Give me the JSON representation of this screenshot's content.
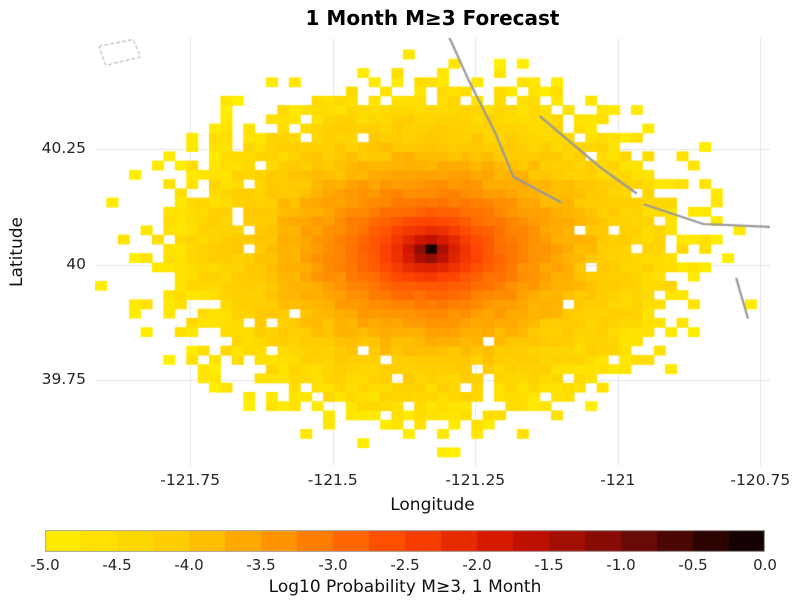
{
  "chart_data": {
    "type": "heatmap",
    "title": "1 Month M≥3 Forecast",
    "xlabel": "Longitude",
    "ylabel": "Latitude",
    "xlim": [
      -121.917,
      -120.733
    ],
    "ylim": [
      39.565,
      40.49
    ],
    "xticks": [
      -121.75,
      -121.5,
      -121.25,
      -121.0,
      -120.75
    ],
    "xtick_labels": [
      "-121.75",
      "-121.5",
      "-121.25",
      "-121",
      "-120.75"
    ],
    "yticks": [
      40.25,
      40.0,
      39.75
    ],
    "ytick_labels": [
      "40.25",
      "40",
      "39.75"
    ],
    "grid": true,
    "grid_color": "#e6e6e6",
    "value_range": [
      -5.0,
      0.0
    ],
    "cell_size_deg": 0.02,
    "field_model": {
      "center_lon": -121.33,
      "center_lat": 40.03,
      "peak_log10_prob": -0.15,
      "edge_log10_prob": -5.0,
      "semi_axis_lon_deg": 0.57,
      "semi_axis_lat_deg": 0.44,
      "core_radius": 0.02,
      "decay_exponent": 0.35,
      "noise_amplitude": 0.22,
      "solid_radius": 0.7,
      "max_radius": 1.06,
      "rng_seed": 1234
    },
    "colormap_stops": [
      {
        "value": -5.0,
        "color": "#ffef00"
      },
      {
        "value": -4.0,
        "color": "#ffc800"
      },
      {
        "value": -3.25,
        "color": "#ff8800"
      },
      {
        "value": -2.5,
        "color": "#ff4400"
      },
      {
        "value": -1.75,
        "color": "#cc1100"
      },
      {
        "value": -1.0,
        "color": "#7a0b06"
      },
      {
        "value": -0.4,
        "color": "#2d0402"
      },
      {
        "value": 0.0,
        "color": "#0a0000"
      }
    ],
    "colorbar": {
      "label": "Log10 Probability M≥3, 1 Month",
      "range": [
        -5.0,
        0.0
      ],
      "ticks": [
        -5.0,
        -4.5,
        -4.0,
        -3.5,
        -3.0,
        -2.5,
        -2.0,
        -1.5,
        -1.0,
        -0.5,
        0.0
      ],
      "tick_labels": [
        "-5.0",
        "-4.5",
        "-4.0",
        "-3.5",
        "-3.0",
        "-2.5",
        "-2.0",
        "-1.5",
        "-1.0",
        "-0.5",
        "0.0"
      ],
      "segments": 20
    },
    "fault_lines": {
      "color": "#999999",
      "width": 2.2,
      "paths": [
        [
          [
            -121.295,
            40.49
          ],
          [
            -121.262,
            40.4
          ],
          [
            -121.215,
            40.285
          ],
          [
            -121.183,
            40.19
          ],
          [
            -121.1,
            40.135
          ]
        ],
        [
          [
            -121.136,
            40.32
          ],
          [
            -121.03,
            40.21
          ],
          [
            -120.968,
            40.155
          ]
        ],
        [
          [
            -120.953,
            40.13
          ],
          [
            -120.85,
            40.088
          ],
          [
            -120.733,
            40.082
          ]
        ],
        [
          [
            -120.792,
            39.97
          ],
          [
            -120.772,
            39.885
          ]
        ]
      ]
    },
    "boundary_polygon": {
      "color": "#aaaaaa",
      "dashed": true,
      "points": [
        [
          -121.91,
          40.472
        ],
        [
          -121.85,
          40.487
        ],
        [
          -121.837,
          40.449
        ],
        [
          -121.898,
          40.431
        ]
      ]
    }
  }
}
